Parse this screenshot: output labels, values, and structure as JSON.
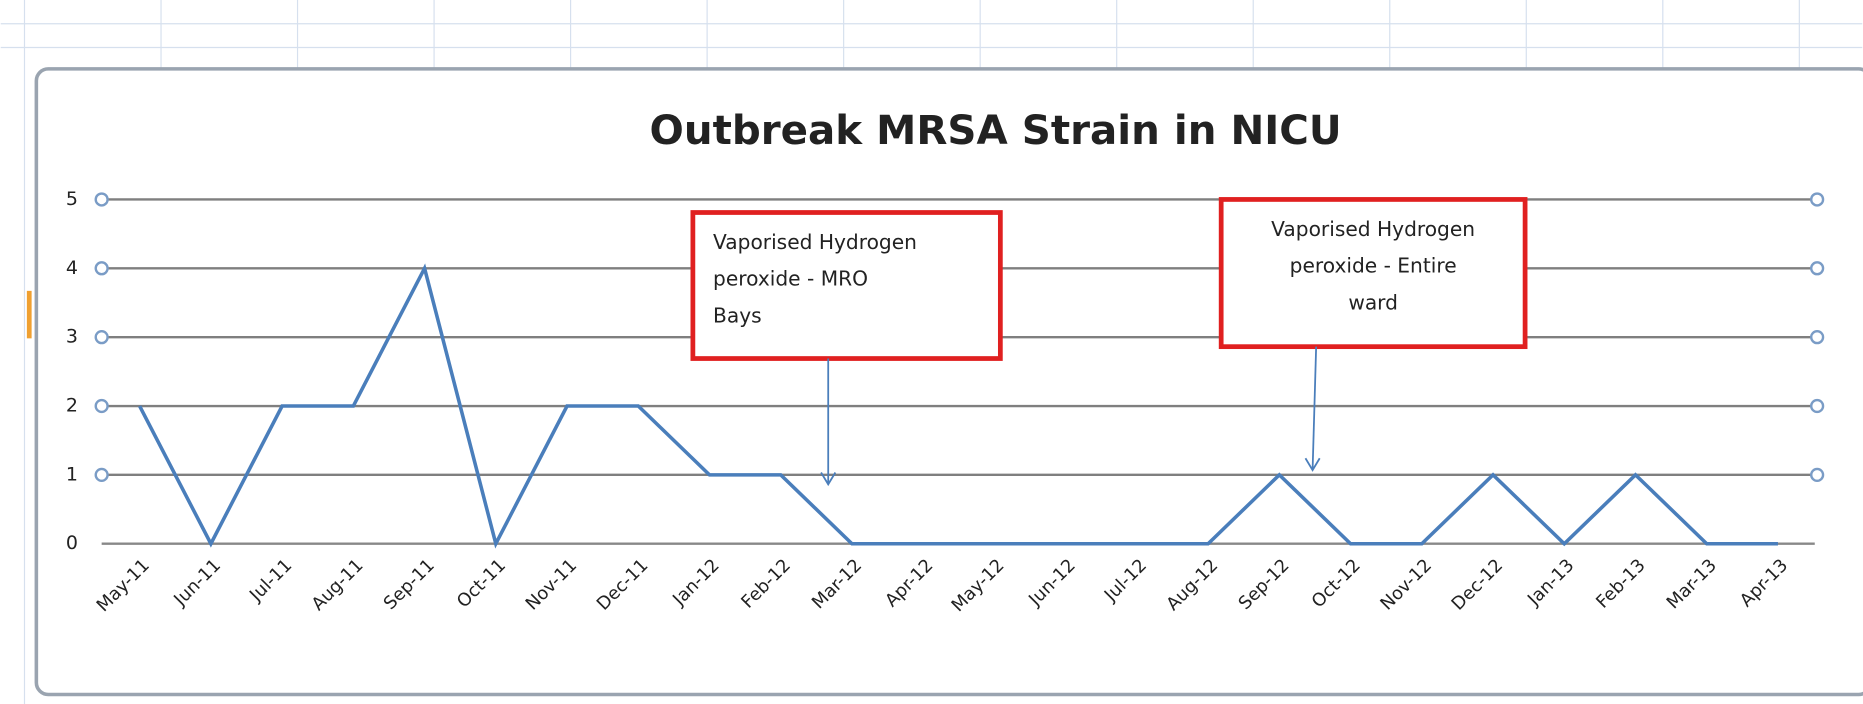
{
  "chart_data": {
    "type": "line",
    "title": "Outbreak MRSA Strain in NICU",
    "categories": [
      "May-11",
      "Jun-11",
      "Jul-11",
      "Aug-11",
      "Sep-11",
      "Oct-11",
      "Nov-11",
      "Dec-11",
      "Jan-12",
      "Feb-12",
      "Mar-12",
      "Apr-12",
      "May-12",
      "Jun-12",
      "Jul-12",
      "Aug-12",
      "Sep-12",
      "Oct-12",
      "Nov-12",
      "Dec-12",
      "Jan-13",
      "Feb-13",
      "Mar-13",
      "Apr-13"
    ],
    "values": [
      2,
      0,
      2,
      2,
      4,
      0,
      2,
      2,
      1,
      1,
      0,
      0,
      0,
      0,
      0,
      0,
      1,
      0,
      0,
      1,
      0,
      1,
      0,
      0
    ],
    "color": "#4a7ebb",
    "ylim": [
      0,
      5
    ],
    "yticks": [
      0,
      1,
      2,
      3,
      4,
      5
    ],
    "grid": true,
    "annotations": [
      {
        "lines": [
          "Vaporised Hydrogen",
          "peroxide - MRO",
          "Bays"
        ]
      },
      {
        "lines": [
          "Vaporised Hydrogen",
          "peroxide  - Entire",
          "ward"
        ]
      }
    ]
  }
}
